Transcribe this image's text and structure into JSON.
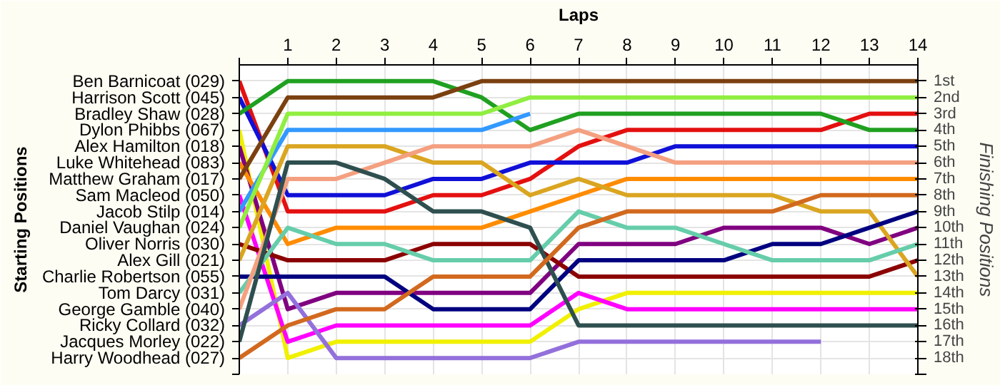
{
  "chart_data": {
    "type": "line",
    "xlabel": "Laps",
    "ylabel": "Finishing Positions",
    "annotations": [
      "Starting Positions"
    ],
    "x": [
      0,
      1,
      2,
      3,
      4,
      5,
      6,
      7,
      8,
      9,
      10,
      11,
      12,
      13,
      14
    ],
    "xlim": [
      0,
      14
    ],
    "xticks": [
      {
        "value": 0,
        "label": null
      },
      1,
      2,
      3,
      4,
      5,
      6,
      7,
      8,
      9,
      10,
      11,
      12,
      13,
      14
    ],
    "ylim": [
      19,
      0
    ],
    "yticks": [
      {
        "value": 1,
        "label": "1st"
      },
      {
        "value": 2,
        "label": "2nd"
      },
      {
        "value": 3,
        "label": "3rd"
      },
      {
        "value": 4,
        "label": "4th"
      },
      {
        "value": 5,
        "label": "5th"
      },
      {
        "value": 6,
        "label": "6th"
      },
      {
        "value": 7,
        "label": "7th"
      },
      {
        "value": 8,
        "label": "8th"
      },
      {
        "value": 9,
        "label": "9th"
      },
      {
        "value": 10,
        "label": "10th"
      },
      {
        "value": 11,
        "label": "11th"
      },
      {
        "value": 12,
        "label": "12th"
      },
      {
        "value": 13,
        "label": "13th"
      },
      {
        "value": 14,
        "label": "14th"
      },
      {
        "value": 15,
        "label": "15th"
      },
      {
        "value": 16,
        "label": "16th"
      },
      {
        "value": 17,
        "label": "17th"
      },
      {
        "value": 18,
        "label": "18th"
      },
      {
        "value": 19,
        "label": null
      }
    ],
    "y2_categories": [
      "Ben Barnicoat (029)",
      "Harrison Scott (045)",
      "Bradley Shaw (028)",
      "Dylon Phibbs (067)",
      "Alex Hamilton (018)",
      "Luke Whitehead (083)",
      "Matthew Graham (017)",
      "Sam Macleod (050)",
      "Jacob Stilp (014)",
      "Daniel Vaughan (024)",
      "Oliver Norris (030)",
      "Alex Gill (021)",
      "Charlie Robertson (055)",
      "Tom Darcy (031)",
      "George Gamble (040)",
      "Ricky Collard (032)",
      "Jacques Morley (022)",
      "Harry Woodhead (027)"
    ],
    "grid": true,
    "marker": "none",
    "line_style": "solid",
    "series": [
      {
        "color": "#e41010",
        "values": [
          1,
          9,
          9,
          9,
          8,
          8,
          7,
          5,
          4,
          4,
          4,
          4,
          4,
          3,
          3
        ]
      },
      {
        "color": "#1010d8",
        "values": [
          2,
          8,
          8,
          8,
          7,
          7,
          6,
          6,
          6,
          5,
          5,
          5,
          5,
          5,
          5
        ]
      },
      {
        "color": "#20a020",
        "values": [
          3,
          1,
          1,
          1,
          1,
          2,
          4,
          3,
          3,
          3,
          3,
          3,
          3,
          4,
          4
        ]
      },
      {
        "color": "#f0f000",
        "values": [
          4,
          18,
          17,
          17,
          17,
          17,
          17,
          15,
          14,
          14,
          14,
          14,
          14,
          14,
          14
        ]
      },
      {
        "color": "#800080",
        "values": [
          5,
          15,
          14,
          14,
          14,
          14,
          14,
          11,
          11,
          11,
          10,
          10,
          10,
          11,
          10
        ]
      },
      {
        "color": "#ff8c00",
        "values": [
          6,
          11,
          10,
          10,
          10,
          10,
          9,
          8,
          7,
          7,
          7,
          7,
          7,
          7,
          7
        ]
      },
      {
        "color": "#7b4010",
        "values": [
          7,
          2,
          2,
          2,
          2,
          1,
          1,
          1,
          1,
          1,
          1,
          1,
          1,
          1,
          1
        ]
      },
      {
        "color": "#ff00ff",
        "values": [
          8,
          17,
          16,
          16,
          16,
          16,
          16,
          14,
          15,
          15,
          15,
          15,
          15,
          15,
          15
        ]
      },
      {
        "color": "#3399ff",
        "values": [
          9,
          4,
          4,
          4,
          4,
          4,
          3,
          null,
          null,
          null,
          null,
          null,
          null,
          null,
          null
        ]
      },
      {
        "color": "#90ee40",
        "values": [
          10,
          3,
          3,
          3,
          3,
          3,
          2,
          2,
          2,
          2,
          2,
          2,
          2,
          2,
          2
        ]
      },
      {
        "color": "#8b0000",
        "values": [
          11,
          12,
          12,
          12,
          11,
          11,
          11,
          13,
          13,
          13,
          13,
          13,
          13,
          13,
          12
        ]
      },
      {
        "color": "#daa520",
        "values": [
          12,
          5,
          5,
          5,
          6,
          6,
          8,
          7,
          8,
          8,
          8,
          8,
          9,
          9,
          13
        ]
      },
      {
        "color": "#000080",
        "values": [
          13,
          13,
          13,
          13,
          15,
          15,
          15,
          12,
          12,
          12,
          12,
          11,
          11,
          10,
          9
        ]
      },
      {
        "color": "#66cdaa",
        "values": [
          14,
          10,
          11,
          11,
          12,
          12,
          12,
          9,
          10,
          10,
          11,
          12,
          12,
          12,
          11
        ]
      },
      {
        "color": "#f4a080",
        "values": [
          15,
          7,
          7,
          6,
          5,
          5,
          5,
          4,
          5,
          6,
          6,
          6,
          6,
          6,
          6
        ]
      },
      {
        "color": "#9370db",
        "values": [
          16,
          14,
          18,
          18,
          18,
          18,
          18,
          17,
          17,
          17,
          17,
          17,
          17,
          null,
          null
        ]
      },
      {
        "color": "#2f4f4f",
        "values": [
          17,
          6,
          6,
          7,
          9,
          9,
          10,
          16,
          16,
          16,
          16,
          16,
          16,
          16,
          16
        ]
      },
      {
        "color": "#d2691e",
        "values": [
          18,
          16,
          15,
          15,
          13,
          13,
          13,
          10,
          9,
          9,
          9,
          9,
          8,
          8,
          8
        ]
      }
    ]
  }
}
